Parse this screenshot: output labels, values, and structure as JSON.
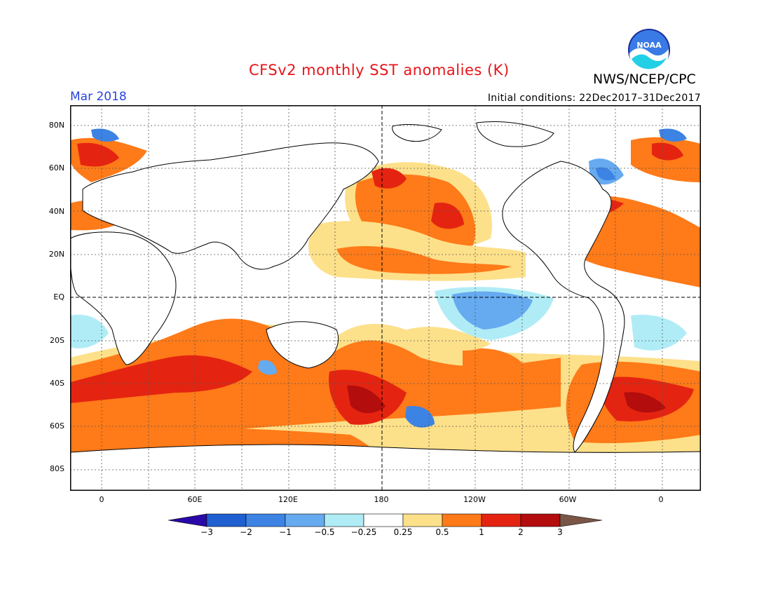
{
  "header": {
    "title": "CFSv2 monthly SST anomalies (K)",
    "org": "NWS/NCEP/CPC",
    "month": "Mar 2018",
    "initial_conditions": "Initial conditions: 22Dec2017–31Dec2017",
    "logo_text": "NOAA"
  },
  "axes": {
    "lat_labels": [
      "80N",
      "60N",
      "40N",
      "20N",
      "EQ",
      "20S",
      "40S",
      "60S",
      "80S"
    ],
    "lon_labels": [
      "0",
      "60E",
      "120E",
      "180",
      "120W",
      "60W",
      "0"
    ]
  },
  "colorbar": {
    "labels": [
      "−3",
      "−2",
      "−1",
      "−0.5",
      "−0.25",
      "0.25",
      "0.5",
      "1",
      "2",
      "3"
    ],
    "colors": [
      "#2a08a8",
      "#1f5fd0",
      "#3c83e4",
      "#66aaf0",
      "#b0ecf6",
      "#ffffff",
      "#fde08a",
      "#ff7a18",
      "#e42411",
      "#b30d0d",
      "#7a5646"
    ]
  }
}
